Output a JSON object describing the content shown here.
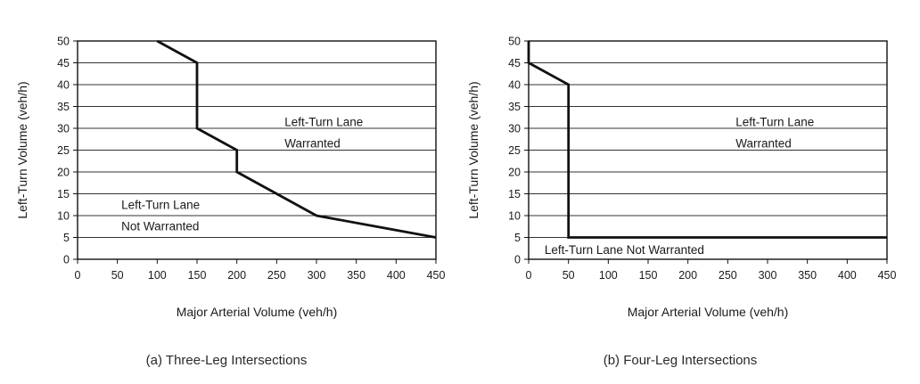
{
  "chart_data": [
    {
      "type": "line",
      "caption": "(a) Three-Leg Intersections",
      "xlabel": "Major Arterial Volume (veh/h)",
      "ylabel": "Left-Turn Volume (veh/h)",
      "xlim": [
        0,
        450
      ],
      "ylim": [
        0,
        50
      ],
      "xticks": [
        0,
        50,
        100,
        150,
        200,
        250,
        300,
        350,
        400,
        450
      ],
      "yticks": [
        0,
        5,
        10,
        15,
        20,
        25,
        30,
        35,
        40,
        45,
        50
      ],
      "grid": "horizontal",
      "x": [
        100,
        150,
        150,
        200,
        200,
        300,
        450
      ],
      "y": [
        50,
        45,
        30,
        25,
        20,
        10,
        5
      ],
      "regions": [
        {
          "lines": [
            "Left-Turn Lane",
            "Warranted"
          ],
          "anchor": [
            260,
            30.5
          ]
        },
        {
          "lines": [
            "Left-Turn Lane",
            "Not Warranted"
          ],
          "anchor": [
            55,
            11.5
          ]
        }
      ]
    },
    {
      "type": "line",
      "caption": "(b) Four-Leg Intersections",
      "xlabel": "Major Arterial Volume (veh/h)",
      "ylabel": "Left-Turn Volume (veh/h)",
      "xlim": [
        0,
        450
      ],
      "ylim": [
        0,
        50
      ],
      "xticks": [
        0,
        50,
        100,
        150,
        200,
        250,
        300,
        350,
        400,
        450
      ],
      "yticks": [
        0,
        5,
        10,
        15,
        20,
        25,
        30,
        35,
        40,
        45,
        50
      ],
      "grid": "horizontal",
      "x": [
        0,
        0,
        50,
        50,
        450
      ],
      "y": [
        50,
        45,
        40,
        5,
        5
      ],
      "regions": [
        {
          "lines": [
            "Left-Turn Lane",
            "Warranted"
          ],
          "anchor": [
            260,
            30.5
          ]
        },
        {
          "lines": [
            "Left-Turn Lane Not Warranted"
          ],
          "anchor": [
            20,
            1.2
          ]
        }
      ]
    }
  ]
}
